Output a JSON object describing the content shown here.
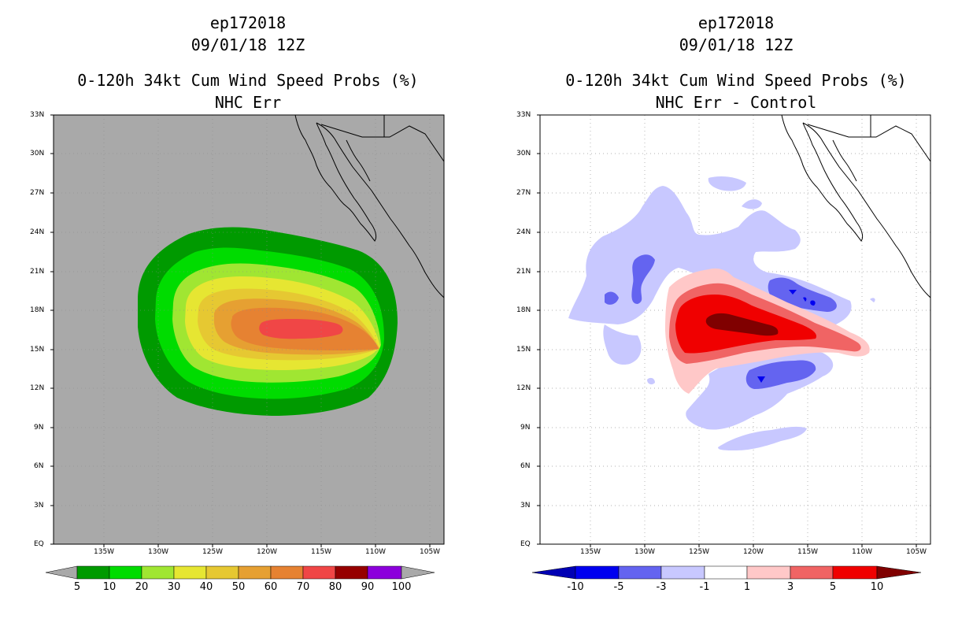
{
  "left": {
    "title1": "ep172018",
    "title2": "09/01/18 12Z",
    "title3": "0-120h 34kt Cum Wind Speed Probs (%)",
    "title4": "NHC Err",
    "background": "#a9a9a9",
    "colorbar": {
      "labels": [
        "5",
        "10",
        "20",
        "30",
        "40",
        "50",
        "60",
        "70",
        "80",
        "90",
        "100"
      ],
      "colors": [
        "#009a00",
        "#00dc00",
        "#a0e632",
        "#e6e632",
        "#e6c832",
        "#e6a032",
        "#e68232",
        "#f04646",
        "#960000",
        "#8c00dc"
      ]
    }
  },
  "right": {
    "title1": "ep172018",
    "title2": "09/01/18 12Z",
    "title3": "0-120h 34kt Cum Wind Speed Probs (%)",
    "title4": "NHC Err - Control",
    "background": "#ffffff",
    "colorbar": {
      "labels": [
        "-10",
        "-5",
        "-3",
        "-1",
        "1",
        "3",
        "5",
        "10"
      ],
      "colors": [
        "#0000b4",
        "#0000f0",
        "#6464f0",
        "#c8c8ff",
        "#ffffff",
        "#ffc8c8",
        "#f06464",
        "#f00000",
        "#800000"
      ]
    }
  },
  "axes": {
    "lat_labels": [
      "33N",
      "30N",
      "27N",
      "24N",
      "21N",
      "18N",
      "15N",
      "12N",
      "9N",
      "6N",
      "3N",
      "EQ"
    ],
    "lon_labels": [
      "135W",
      "130W",
      "125W",
      "120W",
      "115W",
      "110W",
      "105W"
    ]
  }
}
